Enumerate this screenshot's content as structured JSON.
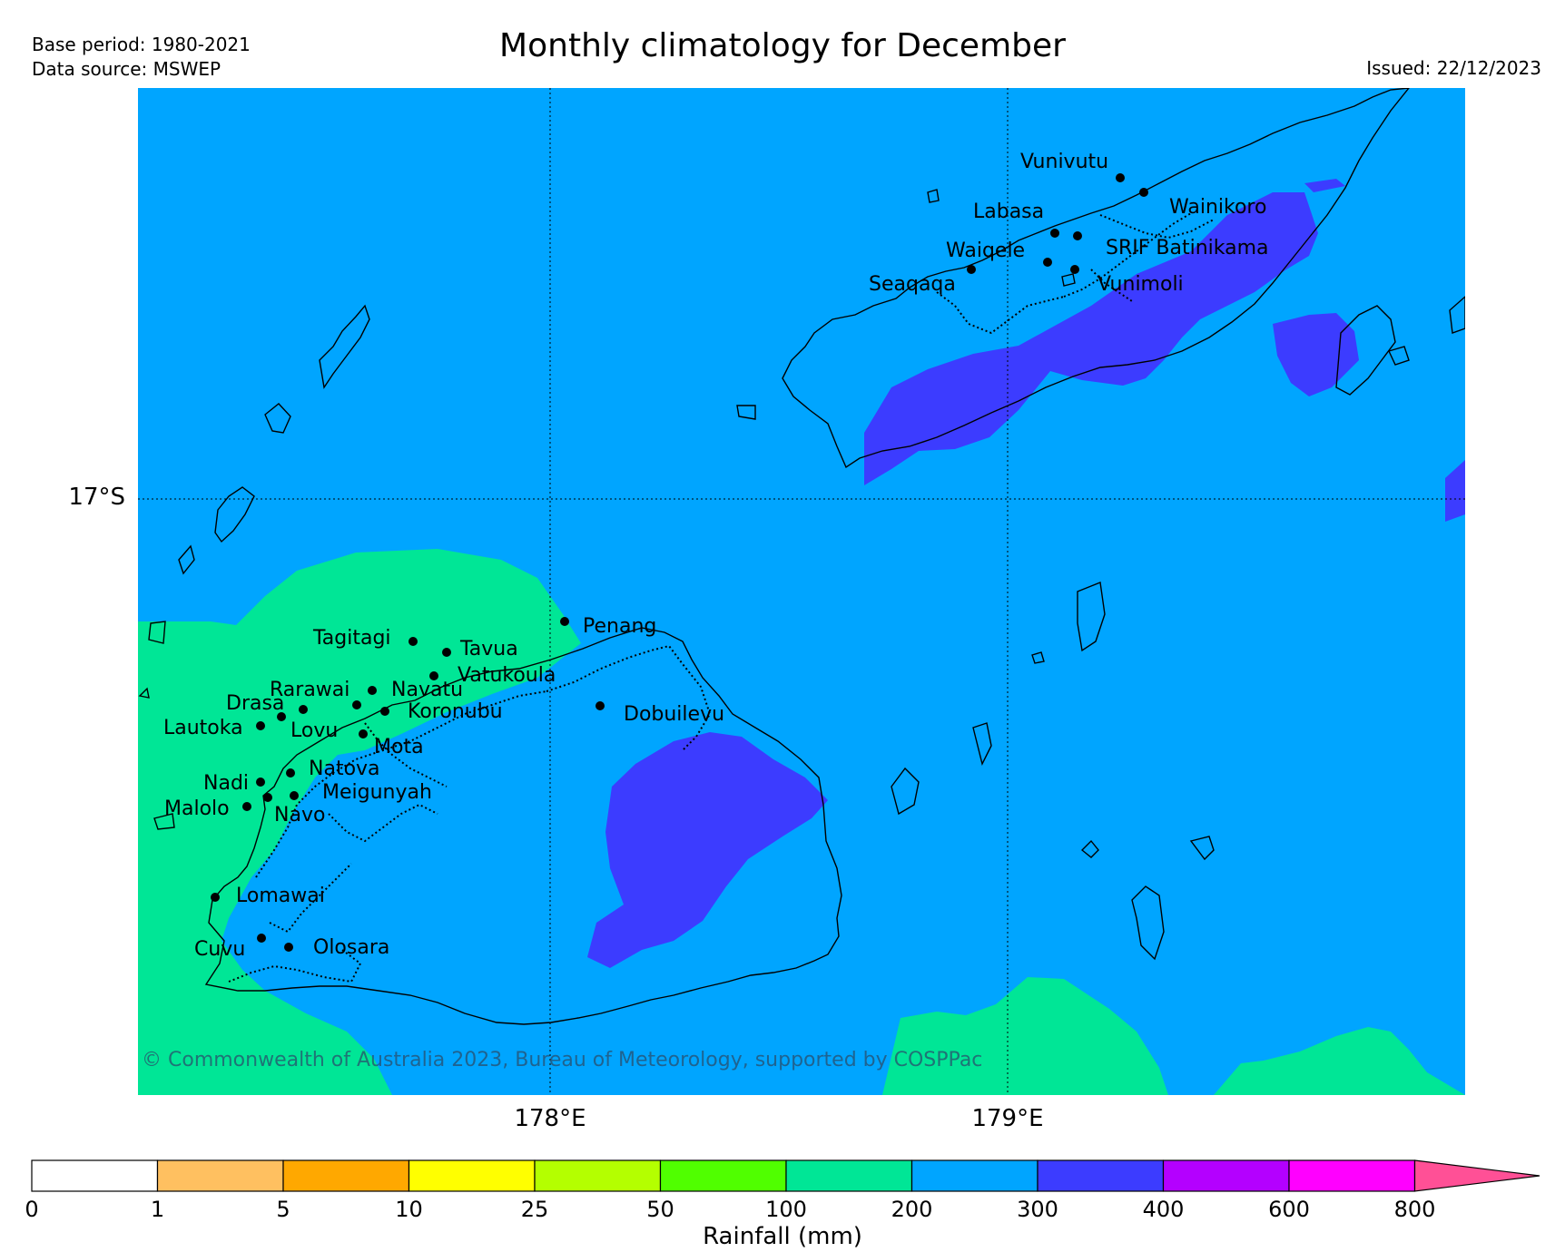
{
  "header": {
    "base_period": "Base period: 1980-2021",
    "data_source": "Data source: MSWEP",
    "title": "Monthly climatology for December",
    "issued": "Issued: 22/12/2023"
  },
  "map": {
    "lat_labels": [
      "17°S"
    ],
    "lon_labels": [
      "178°E",
      "179°E"
    ],
    "copyright": "© Commonwealth of Australia 2023, Bureau of Meteorology, supported by COSPPac",
    "places": [
      "Vunivutu",
      "Wainikoro",
      "Labasa",
      "SRIF Batinikama",
      "Waiqele",
      "Seaqaqa",
      "Vunimoli",
      "Penang",
      "Tagitagi",
      "Tavua",
      "Vatukoula",
      "Rarawai",
      "Navatu",
      "Drasa",
      "Koronubu",
      "Dobuilevu",
      "Lautoka",
      "Lovu",
      "Mota",
      "Natova",
      "Nadi",
      "Meigunyah",
      "Malolo",
      "Navo",
      "Lomawai",
      "Cuvu",
      "Olosara"
    ]
  },
  "legend": {
    "title": "Rainfall (mm)",
    "ticks": [
      "0",
      "1",
      "5",
      "10",
      "25",
      "50",
      "100",
      "200",
      "300",
      "400",
      "600",
      "800"
    ],
    "colors": [
      "#ffffff",
      "#ffc060",
      "#ffa800",
      "#ffff00",
      "#b4ff00",
      "#50ff00",
      "#00e696",
      "#00a5ff",
      "#3c3cff",
      "#b400ff",
      "#ff00ff",
      "#ff5096"
    ],
    "extend": "max"
  },
  "colors": {
    "rain_100_200": "#00e696",
    "rain_200_300": "#00a5ff",
    "rain_300_400": "#3c3cff"
  }
}
